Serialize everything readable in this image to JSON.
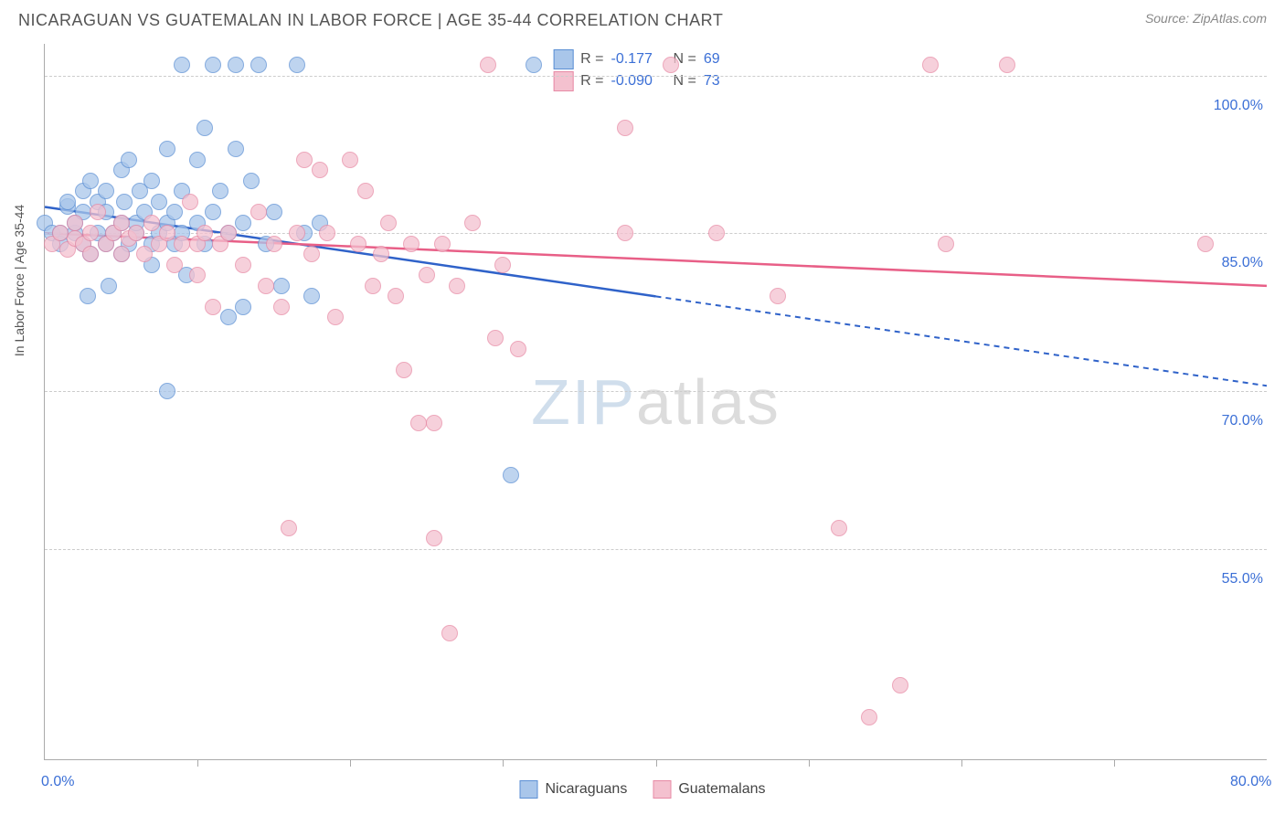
{
  "header": {
    "title": "NICARAGUAN VS GUATEMALAN IN LABOR FORCE | AGE 35-44 CORRELATION CHART",
    "source": "Source: ZipAtlas.com"
  },
  "watermark": {
    "part1": "ZIP",
    "part2": "atlas"
  },
  "chart": {
    "type": "scatter",
    "y_axis_title": "In Labor Force | Age 35-44",
    "background_color": "#ffffff",
    "grid_color": "#cccccc",
    "axis_color": "#aaaaaa",
    "label_color": "#3b6fd6",
    "label_fontsize": 16,
    "title_fontsize": 18,
    "marker_size": 18,
    "xlim": [
      0,
      80
    ],
    "ylim": [
      35,
      103
    ],
    "xtick_labels": [
      {
        "val": 0,
        "label": "0.0%"
      },
      {
        "val": 80,
        "label": "80.0%"
      }
    ],
    "xtick_positions": [
      10,
      20,
      30,
      40,
      50,
      60,
      70
    ],
    "ytick_labels": [
      {
        "val": 55,
        "label": "55.0%"
      },
      {
        "val": 70,
        "label": "70.0%"
      },
      {
        "val": 85,
        "label": "85.0%"
      },
      {
        "val": 100,
        "label": "100.0%"
      }
    ],
    "series": [
      {
        "name": "Nicaraguans",
        "marker_fill": "#a9c6ea",
        "marker_stroke": "#5b8fd4",
        "R": "-0.177",
        "N": "69",
        "trend": {
          "x1": 0,
          "y1": 87.5,
          "x2": 40,
          "y2": 79,
          "x2_ext": 80,
          "y2_ext": 70.5,
          "color": "#2f62c9",
          "width": 2.5
        },
        "points": [
          [
            0,
            86
          ],
          [
            0.5,
            85
          ],
          [
            1,
            84
          ],
          [
            1,
            85
          ],
          [
            1.5,
            87.5
          ],
          [
            1.5,
            88
          ],
          [
            2,
            85
          ],
          [
            2,
            86
          ],
          [
            2.5,
            89
          ],
          [
            2.5,
            87
          ],
          [
            2.5,
            84
          ],
          [
            2.8,
            79
          ],
          [
            3,
            83
          ],
          [
            3,
            90
          ],
          [
            3.5,
            85
          ],
          [
            3.5,
            88
          ],
          [
            4,
            84
          ],
          [
            4,
            87
          ],
          [
            4,
            89
          ],
          [
            4.2,
            80
          ],
          [
            4.5,
            85
          ],
          [
            5,
            91
          ],
          [
            5,
            86
          ],
          [
            5,
            83
          ],
          [
            5.2,
            88
          ],
          [
            5.5,
            84
          ],
          [
            5.5,
            92
          ],
          [
            6,
            85
          ],
          [
            6,
            86
          ],
          [
            6.2,
            89
          ],
          [
            6.5,
            87
          ],
          [
            7,
            90
          ],
          [
            7,
            84
          ],
          [
            7,
            82
          ],
          [
            7.5,
            88
          ],
          [
            7.5,
            85
          ],
          [
            8,
            70
          ],
          [
            8,
            86
          ],
          [
            8,
            93
          ],
          [
            8.5,
            84
          ],
          [
            8.5,
            87
          ],
          [
            9,
            89
          ],
          [
            9,
            85
          ],
          [
            9,
            101
          ],
          [
            9.3,
            81
          ],
          [
            10,
            92
          ],
          [
            10,
            86
          ],
          [
            10.5,
            84
          ],
          [
            10.5,
            95
          ],
          [
            11,
            87
          ],
          [
            11,
            101
          ],
          [
            11.5,
            89
          ],
          [
            12,
            77
          ],
          [
            12,
            85
          ],
          [
            12.5,
            93
          ],
          [
            12.5,
            101
          ],
          [
            13,
            86
          ],
          [
            13,
            78
          ],
          [
            13.5,
            90
          ],
          [
            14,
            101
          ],
          [
            14.5,
            84
          ],
          [
            15,
            87
          ],
          [
            15.5,
            80
          ],
          [
            16.5,
            101
          ],
          [
            17,
            85
          ],
          [
            17.5,
            79
          ],
          [
            18,
            86
          ],
          [
            30.5,
            62
          ],
          [
            32,
            101
          ]
        ]
      },
      {
        "name": "Guatemalans",
        "marker_fill": "#f4c1cf",
        "marker_stroke": "#e78aa5",
        "R": "-0.090",
        "N": "73",
        "trend": {
          "x1": 0,
          "y1": 85,
          "x2": 80,
          "y2": 80,
          "color": "#e85f87",
          "width": 2.5
        },
        "points": [
          [
            0.5,
            84
          ],
          [
            1,
            85
          ],
          [
            1.5,
            83.5
          ],
          [
            2,
            84.5
          ],
          [
            2,
            86
          ],
          [
            2.5,
            84
          ],
          [
            3,
            85
          ],
          [
            3,
            83
          ],
          [
            3.5,
            87
          ],
          [
            4,
            84
          ],
          [
            4.5,
            85
          ],
          [
            5,
            86
          ],
          [
            5,
            83
          ],
          [
            5.5,
            84.5
          ],
          [
            6,
            85
          ],
          [
            6.5,
            83
          ],
          [
            7,
            86
          ],
          [
            7.5,
            84
          ],
          [
            8,
            85
          ],
          [
            8.5,
            82
          ],
          [
            9,
            84
          ],
          [
            9.5,
            88
          ],
          [
            10,
            81
          ],
          [
            10,
            84
          ],
          [
            10.5,
            85
          ],
          [
            11,
            78
          ],
          [
            11.5,
            84
          ],
          [
            12,
            85
          ],
          [
            13,
            82
          ],
          [
            14,
            87
          ],
          [
            14.5,
            80
          ],
          [
            15,
            84
          ],
          [
            15.5,
            78
          ],
          [
            16,
            57
          ],
          [
            16.5,
            85
          ],
          [
            17,
            92
          ],
          [
            17.5,
            83
          ],
          [
            18,
            91
          ],
          [
            18.5,
            85
          ],
          [
            19,
            77
          ],
          [
            20,
            92
          ],
          [
            20.5,
            84
          ],
          [
            21,
            89
          ],
          [
            21.5,
            80
          ],
          [
            22,
            83
          ],
          [
            22.5,
            86
          ],
          [
            23,
            79
          ],
          [
            23.5,
            72
          ],
          [
            24,
            84
          ],
          [
            24.5,
            67
          ],
          [
            25,
            81
          ],
          [
            25.5,
            56
          ],
          [
            25.5,
            67
          ],
          [
            26,
            84
          ],
          [
            26.5,
            47
          ],
          [
            27,
            80
          ],
          [
            28,
            86
          ],
          [
            29,
            101
          ],
          [
            29.5,
            75
          ],
          [
            30,
            82
          ],
          [
            31,
            74
          ],
          [
            38,
            95
          ],
          [
            38,
            85
          ],
          [
            41,
            101
          ],
          [
            44,
            85
          ],
          [
            48,
            79
          ],
          [
            52,
            57
          ],
          [
            54,
            39
          ],
          [
            56,
            42
          ],
          [
            58,
            101
          ],
          [
            59,
            84
          ],
          [
            63,
            101
          ],
          [
            76,
            84
          ]
        ]
      }
    ],
    "legend_top": {
      "R_label": "R =",
      "N_label": "N ="
    },
    "legend_bottom_labels": [
      "Nicaraguans",
      "Guatemalans"
    ]
  }
}
